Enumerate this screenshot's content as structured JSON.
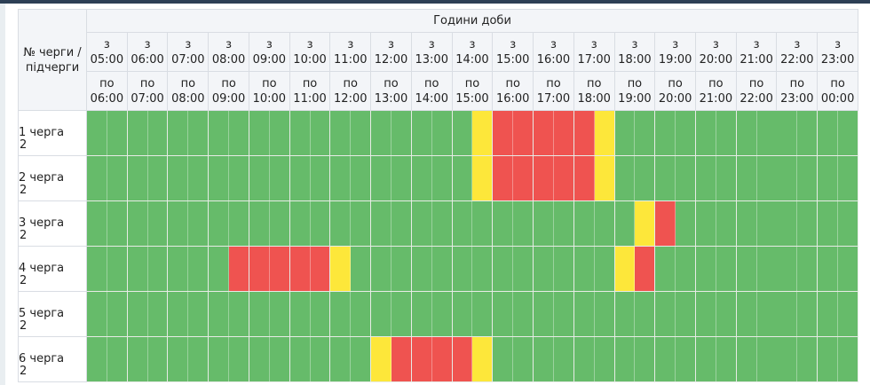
{
  "header": {
    "corner_label": "№ черги / підчерги",
    "title": "Години доби",
    "from_labels": [
      "з 05:00",
      "з 06:00",
      "з 07:00",
      "з 08:00",
      "з 09:00",
      "з 10:00",
      "з 11:00",
      "з 12:00",
      "з 13:00",
      "з 14:00",
      "з 15:00",
      "з 16:00",
      "з 17:00",
      "з 18:00",
      "з 19:00",
      "з 20:00",
      "з 21:00",
      "з 22:00",
      "з 23:00"
    ],
    "to_labels": [
      "по 06:00",
      "по 07:00",
      "по 08:00",
      "по 09:00",
      "по 10:00",
      "по 11:00",
      "по 12:00",
      "по 13:00",
      "по 14:00",
      "по 15:00",
      "по 16:00",
      "по 17:00",
      "по 18:00",
      "по 19:00",
      "по 20:00",
      "по 21:00",
      "по 22:00",
      "по 23:00",
      "по 00:00"
    ]
  },
  "colors": {
    "on": "#66bb6a",
    "off": "#ef5350",
    "maybe": "#fde73a"
  },
  "legend_codes": {
    "g": "on",
    "r": "off",
    "y": "maybe"
  },
  "rows": [
    {
      "label": "1 черга",
      "sub": "2",
      "slots": "gggggggggggggggggggyrrrrry gggggggggggg"
    },
    {
      "label": "2 черга",
      "sub": "2",
      "slots": "gggggggggggggggggggyrrrrry gggggggggggg"
    },
    {
      "label": "3 черга",
      "sub": "2",
      "slots": "gggggggggggggggggggggggggggyrggggggggggg"
    },
    {
      "label": "4 черга",
      "sub": "2",
      "slots": "gggggggrrrrrygggggggggggggyrggggggggggg"
    },
    {
      "label": "5 черга",
      "sub": "2",
      "slots": "gggggggggggggggggggggggggggggggggggggg"
    },
    {
      "label": "6 черга",
      "sub": "2",
      "slots": "ggggggggggggggyrrrrygggggggggggggggggggg"
    }
  ]
}
